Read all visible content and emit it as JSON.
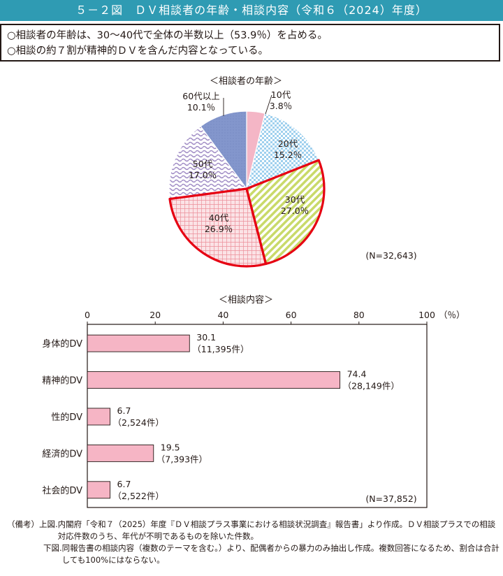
{
  "figure_title": "５－２図　ＤＶ相談者の年齢・相談内容（令和６（2024）年度）",
  "summary": [
    "○相談者の年齢は、30～40代で全体の半数以上（53.9％）を占める。",
    "○相談の約７割が精神的ＤＶを含んだ内容となっている。"
  ],
  "chart_data": [
    {
      "type": "pie",
      "title": "＜相談者の年齢＞",
      "slices": [
        {
          "label": "10代",
          "pct_label": "3.8％",
          "value": 3.8,
          "color": "#f4b6c6",
          "highlight": false
        },
        {
          "label": "20代",
          "pct_label": "15.2％",
          "value": 15.2,
          "color": "#9fd0ee",
          "highlight": false
        },
        {
          "label": "30代",
          "pct_label": "27.0％",
          "value": 27.0,
          "color": "#d4e27e",
          "highlight": true
        },
        {
          "label": "40代",
          "pct_label": "26.9％",
          "value": 26.9,
          "color": "#f3b1b8",
          "highlight": true
        },
        {
          "label": "50代",
          "pct_label": "17.0％",
          "value": 17.0,
          "color": "#b9a7d3",
          "highlight": false
        },
        {
          "label": "60代以上",
          "pct_label": "10.1％",
          "value": 10.1,
          "color": "#8396cc",
          "highlight": false
        }
      ],
      "note": "(N=32,643)",
      "highlight_color": "#e60012"
    },
    {
      "type": "bar",
      "title": "＜相談内容＞",
      "orientation": "horizontal",
      "xlim": [
        0,
        100
      ],
      "xticks": [
        0,
        20,
        40,
        60,
        80,
        100
      ],
      "xunit": "（％）",
      "bar_color": "#f6b5c5",
      "categories": [
        "身体的DV",
        "精神的DV",
        "性的DV",
        "経済的DV",
        "社会的DV"
      ],
      "values": [
        30.1,
        74.4,
        6.7,
        19.5,
        6.7
      ],
      "value_labels": [
        "30.1",
        "74.4",
        "6.7",
        "19.5",
        "6.7"
      ],
      "count_labels": [
        "（11,395件）",
        "（28,149件）",
        "（2,524件）",
        "（7,393件）",
        "（2,522件）"
      ],
      "note": "(N=37,852)"
    }
  ],
  "notes": {
    "label": "（備考）",
    "lines": [
      {
        "prefix": "上図.",
        "text": "内閣府「令和７（2025）年度『ＤＶ相談プラス事業における相談状況調査』報告書」より作成。ＤＶ相談プラスでの相談対応件数のうち、年代が不明であるものを除いた件数。"
      },
      {
        "prefix": "下図.",
        "text": "同報告書の相談内容（複数のテーマを含む。）より、配偶者からの暴力のみ抽出し作成。複数回答になるため、割合は合計しても100%にはならない。"
      }
    ]
  }
}
